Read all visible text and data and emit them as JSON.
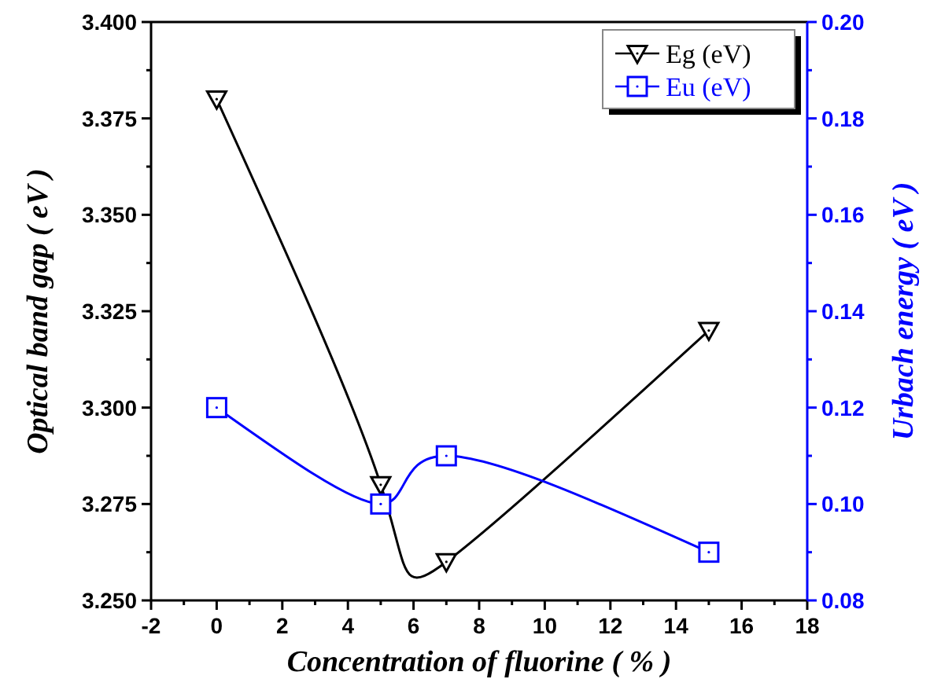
{
  "chart_data": {
    "type": "line",
    "xlabel": "Concentration of fluorine ( % )",
    "ylabel": "Optical band gap ( eV )",
    "y2label": "Urbach energy ( eV )",
    "x": [
      0,
      5,
      7,
      15
    ],
    "series": [
      {
        "name": "Eg (eV)",
        "color": "#000000",
        "values": [
          3.38,
          3.28,
          3.26,
          3.32
        ],
        "marker": "triangle"
      },
      {
        "name": "Eu (eV)",
        "color": "#0000ff",
        "values": [
          0.12,
          0.1,
          0.11,
          0.09
        ],
        "marker": "square",
        "axis": "y2"
      }
    ],
    "xlim": [
      -2,
      18
    ],
    "xticks": [
      -2,
      {
        "value": -1,
        "label": null
      },
      0,
      {
        "value": 1,
        "label": null
      },
      2,
      {
        "value": 3,
        "label": null
      },
      4,
      {
        "value": 5,
        "label": null
      },
      6,
      {
        "value": 7,
        "label": null
      },
      8,
      {
        "value": 9,
        "label": null
      },
      10,
      {
        "value": 11,
        "label": null
      },
      12,
      {
        "value": 13,
        "label": null
      },
      14,
      {
        "value": 15,
        "label": null
      },
      16,
      {
        "value": 17,
        "label": null
      },
      18
    ],
    "ylim": [
      3.25,
      3.4
    ],
    "yticks": [
      {
        "value": 3.25,
        "label": "3.250"
      },
      {
        "value": 3.2625,
        "label": null
      },
      {
        "value": 3.275,
        "label": "3.275"
      },
      {
        "value": 3.2875,
        "label": null
      },
      {
        "value": 3.3,
        "label": "3.300"
      },
      {
        "value": 3.3125,
        "label": null
      },
      {
        "value": 3.325,
        "label": "3.325"
      },
      {
        "value": 3.3375,
        "label": null
      },
      {
        "value": 3.35,
        "label": "3.350"
      },
      {
        "value": 3.3625,
        "label": null
      },
      {
        "value": 3.375,
        "label": "3.375"
      },
      {
        "value": 3.3875,
        "label": null
      },
      {
        "value": 3.4,
        "label": "3.400"
      }
    ],
    "y2lim": [
      0.08,
      0.2
    ],
    "y2ticks": [
      {
        "value": 0.08,
        "label": "0.08"
      },
      {
        "value": 0.09,
        "label": null
      },
      {
        "value": 0.1,
        "label": "0.10"
      },
      {
        "value": 0.11,
        "label": null
      },
      {
        "value": 0.12,
        "label": "0.12"
      },
      {
        "value": 0.13,
        "label": null
      },
      {
        "value": 0.14,
        "label": "0.14"
      },
      {
        "value": 0.15,
        "label": null
      },
      {
        "value": 0.16,
        "label": "0.16"
      },
      {
        "value": 0.17,
        "label": null
      },
      {
        "value": 0.18,
        "label": "0.18"
      },
      {
        "value": 0.19,
        "label": null
      },
      {
        "value": 0.2,
        "label": "0.20"
      }
    ],
    "legend": "top right",
    "grid": false
  }
}
